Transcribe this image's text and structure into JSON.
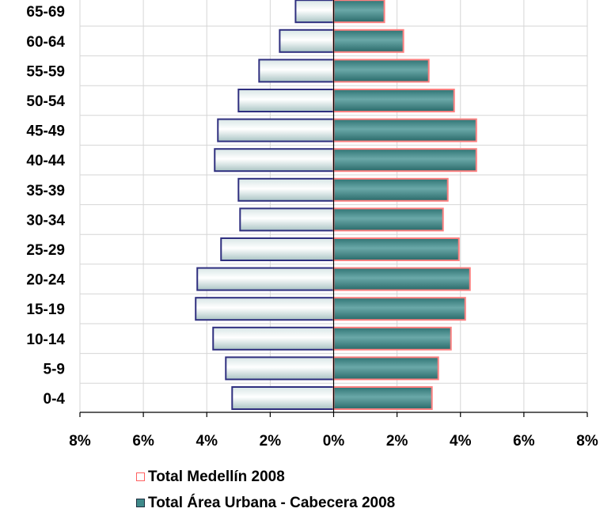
{
  "chart_data": {
    "type": "bar",
    "orientation": "horizontal-population-pyramid",
    "categories": [
      "0-4",
      "5-9",
      "10-14",
      "15-19",
      "20-24",
      "25-29",
      "30-34",
      "35-39",
      "40-44",
      "45-49",
      "50-54",
      "55-59",
      "60-64",
      "65-69"
    ],
    "series": [
      {
        "name": "Total Medellín 2008",
        "side": "left",
        "values": [
          3.2,
          3.4,
          3.8,
          4.35,
          4.3,
          3.55,
          2.95,
          3.0,
          3.75,
          3.65,
          3.0,
          2.35,
          1.7,
          1.2
        ],
        "color": "#cfe0e0",
        "edge": "#2f2f7f"
      },
      {
        "name": "Total Área Urbana - Cabecera 2008",
        "side": "right",
        "values": [
          3.1,
          3.3,
          3.7,
          4.15,
          4.3,
          3.95,
          3.45,
          3.6,
          4.5,
          4.5,
          3.8,
          3.0,
          2.2,
          1.6
        ],
        "color": "#3f8a8a",
        "edge": "#ff8080"
      }
    ],
    "xlim": [
      -8,
      8
    ],
    "x_tick_labels": [
      "8%",
      "6%",
      "4%",
      "2%",
      "0%",
      "2%",
      "4%",
      "6%",
      "8%"
    ],
    "grid": true,
    "legend_position": "bottom"
  }
}
